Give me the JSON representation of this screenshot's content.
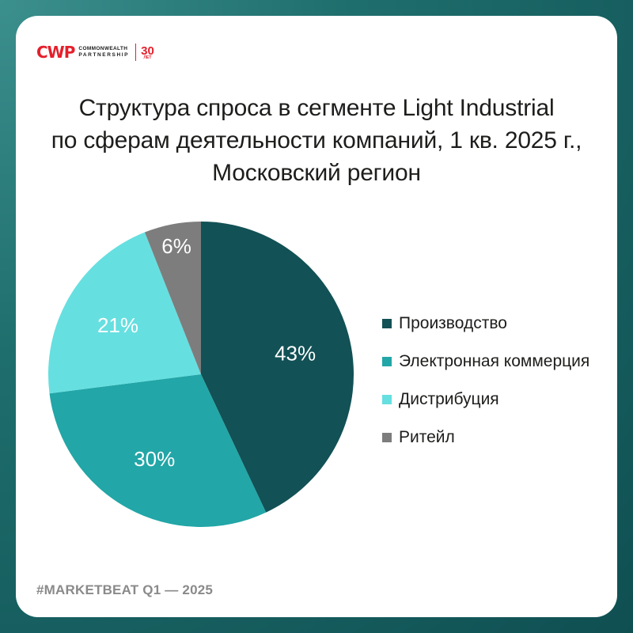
{
  "logo": {
    "mark": "CWP",
    "line1": "COMMONWEALTH",
    "line2": "PARTNERSHIP",
    "anniversary_number": "30",
    "anniversary_word": "ЛЕТ"
  },
  "title_lines": [
    "Структура спроса в сегменте Light Industrial",
    "по сферам деятельности компаний, 1 кв. 2025 г.,",
    "Московский регион"
  ],
  "footer": "#MARKETBEAT Q1 — 2025",
  "colors": {
    "background": "#1f6f6e",
    "card": "#ffffff",
    "brand_red": "#e4202c"
  },
  "chart_data": {
    "type": "pie",
    "title": "Структура спроса в сегменте Light Industrial по сферам деятельности компаний, 1 кв. 2025 г., Московский регион",
    "categories": [
      "Производство",
      "Электронная коммерция",
      "Дистрибуция",
      "Ритейл"
    ],
    "values": [
      43,
      30,
      21,
      6
    ],
    "labels": [
      "43%",
      "30%",
      "21%",
      "6%"
    ],
    "colors": [
      "#125155",
      "#22a6a7",
      "#66dfe0",
      "#7d7d7d"
    ],
    "unit": "%",
    "start": "12 o'clock",
    "direction": "clockwise",
    "legend_position": "right"
  }
}
